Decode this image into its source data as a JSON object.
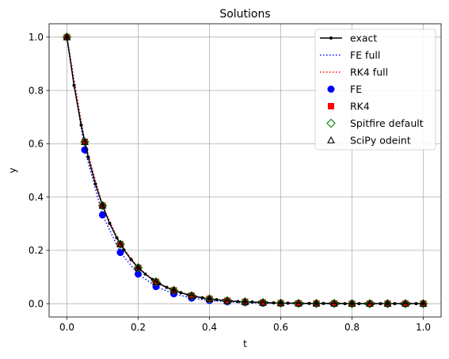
{
  "chart_data": {
    "type": "line",
    "title": "Solutions",
    "xlabel": "t",
    "ylabel": "y",
    "xlim": [
      -0.05,
      1.05
    ],
    "ylim": [
      -0.05,
      1.05
    ],
    "xticks": [
      "0.0",
      "0.2",
      "0.4",
      "0.6",
      "0.8",
      "1.0"
    ],
    "yticks": [
      "0.0",
      "0.2",
      "0.4",
      "0.6",
      "0.8",
      "1.0"
    ],
    "grid": true,
    "legend_position": "top-right",
    "legend": [
      "exact",
      "FE full",
      "RK4 full",
      "FE",
      "RK4",
      "Spitfire default",
      "SciPy odeint"
    ],
    "series": [
      {
        "name": "exact",
        "style": "line-dot",
        "color": "#000000",
        "x": [
          0.0,
          0.02,
          0.04,
          0.06,
          0.08,
          0.1,
          0.12,
          0.14,
          0.16,
          0.18,
          0.2,
          0.22,
          0.24,
          0.26,
          0.28,
          0.3,
          0.32,
          0.34,
          0.36,
          0.38,
          0.4,
          0.42,
          0.44,
          0.46,
          0.48,
          0.5,
          0.52,
          0.54,
          0.56,
          0.58,
          0.6,
          0.62,
          0.64,
          0.66,
          0.68,
          0.7,
          0.72,
          0.74,
          0.76,
          0.78,
          0.8,
          0.82,
          0.84,
          0.86,
          0.88,
          0.9,
          0.92,
          0.94,
          0.96,
          0.98,
          1.0
        ],
        "y": [
          1.0,
          0.819,
          0.67,
          0.549,
          0.449,
          0.368,
          0.301,
          0.247,
          0.202,
          0.165,
          0.135,
          0.111,
          0.091,
          0.074,
          0.061,
          0.05,
          0.041,
          0.033,
          0.027,
          0.022,
          0.018,
          0.015,
          0.012,
          0.01,
          0.008,
          0.007,
          0.006,
          0.005,
          0.004,
          0.003,
          0.002,
          0.002,
          0.002,
          0.001,
          0.001,
          0.001,
          0.001,
          0.001,
          0.001,
          0.0,
          0.0,
          0.0,
          0.0,
          0.0,
          0.0,
          0.0,
          0.0,
          0.0,
          0.0,
          0.0,
          0.0
        ]
      },
      {
        "name": "FE full",
        "style": "dotted",
        "color": "#0000ff",
        "x": [
          0.0,
          0.05,
          0.1,
          0.15,
          0.2,
          0.25,
          0.3,
          0.35,
          0.4,
          0.45,
          0.5,
          0.55,
          0.6,
          0.65,
          0.7,
          0.75,
          0.8,
          0.85,
          0.9,
          0.95,
          1.0
        ],
        "y": [
          1.0,
          0.577,
          0.333,
          0.192,
          0.111,
          0.064,
          0.037,
          0.021,
          0.012,
          0.007,
          0.004,
          0.002,
          0.001,
          0.001,
          0.0,
          0.0,
          0.0,
          0.0,
          0.0,
          0.0,
          0.0
        ]
      },
      {
        "name": "RK4 full",
        "style": "dotted",
        "color": "#ff0000",
        "x": [
          0.0,
          0.05,
          0.1,
          0.15,
          0.2,
          0.25,
          0.3,
          0.35,
          0.4,
          0.45,
          0.5,
          0.55,
          0.6,
          0.65,
          0.7,
          0.75,
          0.8,
          0.85,
          0.9,
          0.95,
          1.0
        ],
        "y": [
          1.0,
          0.607,
          0.368,
          0.223,
          0.135,
          0.082,
          0.05,
          0.03,
          0.018,
          0.011,
          0.007,
          0.004,
          0.002,
          0.001,
          0.001,
          0.001,
          0.0,
          0.0,
          0.0,
          0.0,
          0.0
        ]
      },
      {
        "name": "FE",
        "style": "circle",
        "color": "#0000ff",
        "x": [
          0.0,
          0.05,
          0.1,
          0.15,
          0.2,
          0.25,
          0.3,
          0.35,
          0.4,
          0.45,
          0.5,
          0.55,
          0.6,
          0.65,
          0.7,
          0.75,
          0.8,
          0.85,
          0.9,
          0.95,
          1.0
        ],
        "y": [
          1.0,
          0.577,
          0.333,
          0.192,
          0.111,
          0.064,
          0.037,
          0.021,
          0.012,
          0.007,
          0.004,
          0.002,
          0.001,
          0.001,
          0.0,
          0.0,
          0.0,
          0.0,
          0.0,
          0.0,
          0.0
        ]
      },
      {
        "name": "RK4",
        "style": "square",
        "color": "#ff0000",
        "x": [
          0.0,
          0.05,
          0.1,
          0.15,
          0.2,
          0.25,
          0.3,
          0.35,
          0.4,
          0.45,
          0.5,
          0.55,
          0.6,
          0.65,
          0.7,
          0.75,
          0.8,
          0.85,
          0.9,
          0.95,
          1.0
        ],
        "y": [
          1.0,
          0.607,
          0.368,
          0.223,
          0.135,
          0.082,
          0.05,
          0.03,
          0.018,
          0.011,
          0.007,
          0.004,
          0.002,
          0.001,
          0.001,
          0.001,
          0.0,
          0.0,
          0.0,
          0.0,
          0.0
        ]
      },
      {
        "name": "Spitfire default",
        "style": "diamond-open",
        "color": "#008000",
        "x": [
          0.0,
          0.05,
          0.1,
          0.15,
          0.2,
          0.25,
          0.3,
          0.35,
          0.4,
          0.45,
          0.5,
          0.55,
          0.6,
          0.65,
          0.7,
          0.75,
          0.8,
          0.85,
          0.9,
          0.95,
          1.0
        ],
        "y": [
          1.0,
          0.607,
          0.368,
          0.223,
          0.135,
          0.082,
          0.05,
          0.03,
          0.018,
          0.011,
          0.007,
          0.004,
          0.002,
          0.001,
          0.001,
          0.001,
          0.0,
          0.0,
          0.0,
          0.0,
          0.0
        ]
      },
      {
        "name": "SciPy odeint",
        "style": "triangle-open",
        "color": "#000000",
        "x": [
          0.0,
          0.05,
          0.1,
          0.15,
          0.2,
          0.25,
          0.3,
          0.35,
          0.4,
          0.45,
          0.5,
          0.55,
          0.6,
          0.65,
          0.7,
          0.75,
          0.8,
          0.85,
          0.9,
          0.95,
          1.0
        ],
        "y": [
          1.0,
          0.607,
          0.368,
          0.223,
          0.135,
          0.082,
          0.05,
          0.03,
          0.018,
          0.011,
          0.007,
          0.004,
          0.002,
          0.001,
          0.001,
          0.001,
          0.0,
          0.0,
          0.0,
          0.0,
          0.0
        ]
      }
    ]
  }
}
